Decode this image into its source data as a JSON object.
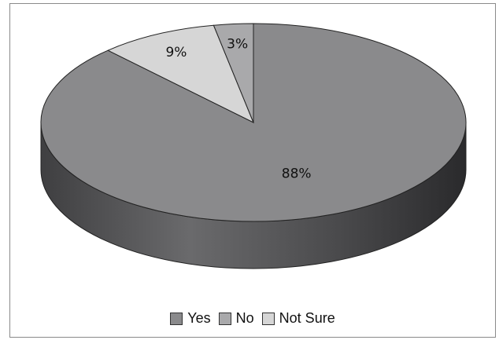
{
  "chart_data": {
    "type": "pie",
    "is_3d": true,
    "slices": [
      {
        "name": "Yes",
        "value": 88,
        "label": "88%",
        "color": "#8a8a8c"
      },
      {
        "name": "No",
        "value": 3,
        "label": "3%",
        "color": "#a9a9ab"
      },
      {
        "name": "Not Sure",
        "value": 9,
        "label": "9%",
        "color": "#d6d6d6"
      }
    ],
    "legend_position": "bottom"
  }
}
